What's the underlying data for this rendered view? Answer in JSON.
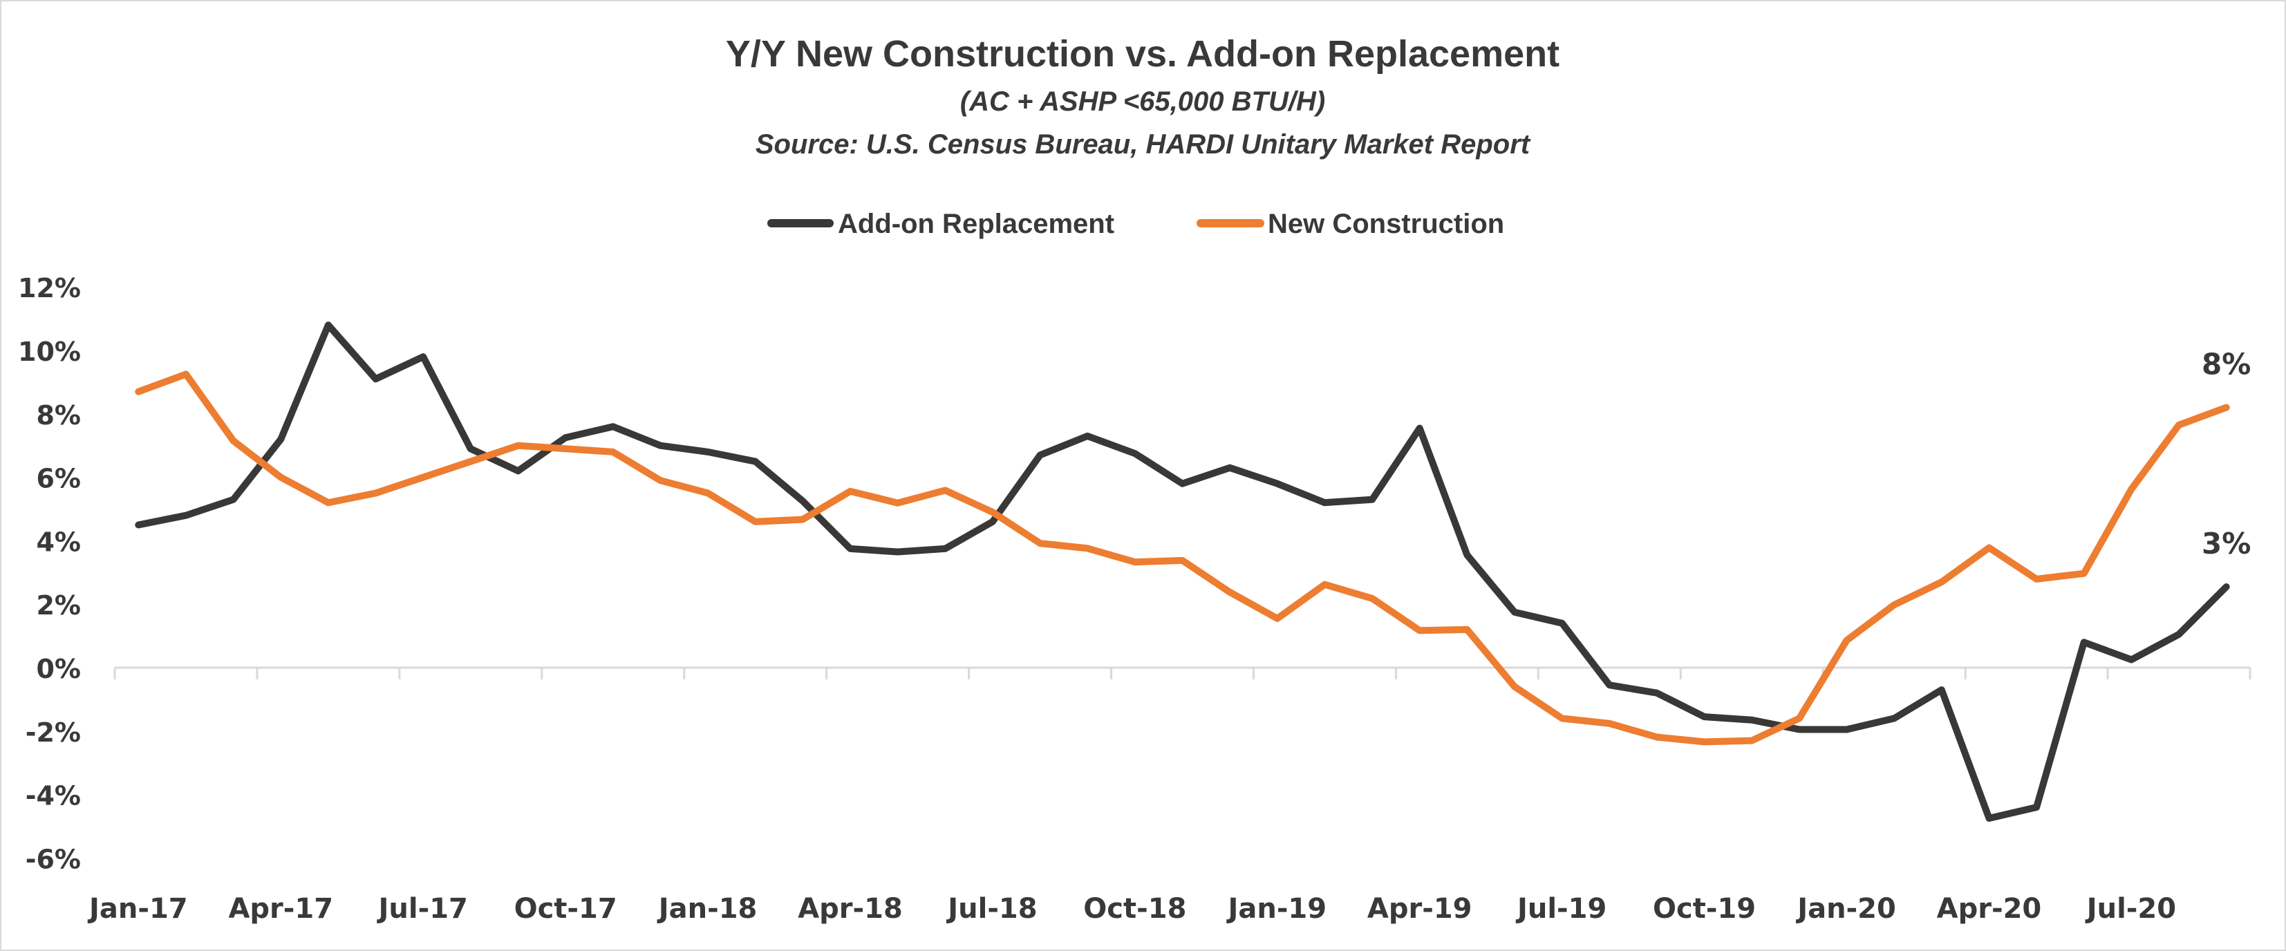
{
  "chart_data": {
    "type": "line",
    "title": "Y/Y New Construction vs. Add-on Replacement",
    "subtitle": "(AC + ASHP <65,000 BTU/H)",
    "source": "Source: U.S. Census Bureau, HARDI Unitary Market Report",
    "xlabel": "",
    "ylabel": "",
    "ylim": [
      -6,
      12
    ],
    "ytick_step": 2,
    "ytick_labels": [
      "12%",
      "10%",
      "8%",
      "6%",
      "4%",
      "2%",
      "0%",
      "-2%",
      "-4%",
      "-6%"
    ],
    "x": [
      "Jan-17",
      "Feb-17",
      "Mar-17",
      "Apr-17",
      "May-17",
      "Jun-17",
      "Jul-17",
      "Aug-17",
      "Sep-17",
      "Oct-17",
      "Nov-17",
      "Dec-17",
      "Jan-18",
      "Feb-18",
      "Mar-18",
      "Apr-18",
      "May-18",
      "Jun-18",
      "Jul-18",
      "Aug-18",
      "Sep-18",
      "Oct-18",
      "Nov-18",
      "Dec-18",
      "Jan-19",
      "Feb-19",
      "Mar-19",
      "Apr-19",
      "May-19",
      "Jun-19",
      "Jul-19",
      "Aug-19",
      "Sep-19",
      "Oct-19",
      "Nov-19",
      "Dec-19",
      "Jan-20",
      "Feb-20",
      "Mar-20",
      "Apr-20",
      "May-20",
      "Jun-20",
      "Jul-20",
      "Aug-20",
      "Sep-20"
    ],
    "xtick_labels": [
      "Jan-17",
      "Apr-17",
      "Jul-17",
      "Oct-17",
      "Jan-18",
      "Apr-18",
      "Jul-18",
      "Oct-18",
      "Jan-19",
      "Apr-19",
      "Jul-19",
      "Oct-19",
      "Jan-20",
      "Apr-20",
      "Jul-20"
    ],
    "legend_position": "top-center",
    "grid": false,
    "series": [
      {
        "name": "Add-on Replacement",
        "color": "#3a3836",
        "values": [
          4.5,
          4.8,
          5.3,
          7.2,
          10.8,
          9.1,
          9.8,
          6.9,
          6.2,
          7.25,
          7.6,
          7.0,
          6.8,
          6.5,
          5.25,
          3.75,
          3.65,
          3.75,
          4.6,
          6.7,
          7.3,
          6.75,
          5.8,
          6.3,
          5.8,
          5.2,
          5.3,
          7.55,
          3.55,
          1.75,
          1.4,
          -0.55,
          -0.8,
          -1.55,
          -1.65,
          -1.95,
          -1.95,
          -1.6,
          -0.7,
          -4.75,
          -4.4,
          0.8,
          0.25,
          1.05,
          2.55
        ],
        "end_label": "3%"
      },
      {
        "name": "New Construction",
        "color": "#ed7d31",
        "values": [
          8.7,
          9.25,
          7.15,
          6.0,
          5.2,
          5.5,
          6.0,
          6.5,
          7.0,
          6.9,
          6.8,
          5.9,
          5.5,
          4.6,
          4.67,
          5.56,
          5.19,
          5.59,
          4.9,
          3.92,
          3.76,
          3.33,
          3.38,
          2.38,
          1.55,
          2.62,
          2.18,
          1.17,
          1.2,
          -0.6,
          -1.6,
          -1.76,
          -2.19,
          -2.34,
          -2.3,
          -1.6,
          0.86,
          1.98,
          2.7,
          3.78,
          2.79,
          2.97,
          5.63,
          7.65,
          8.2
        ],
        "end_label": "8%"
      }
    ]
  }
}
